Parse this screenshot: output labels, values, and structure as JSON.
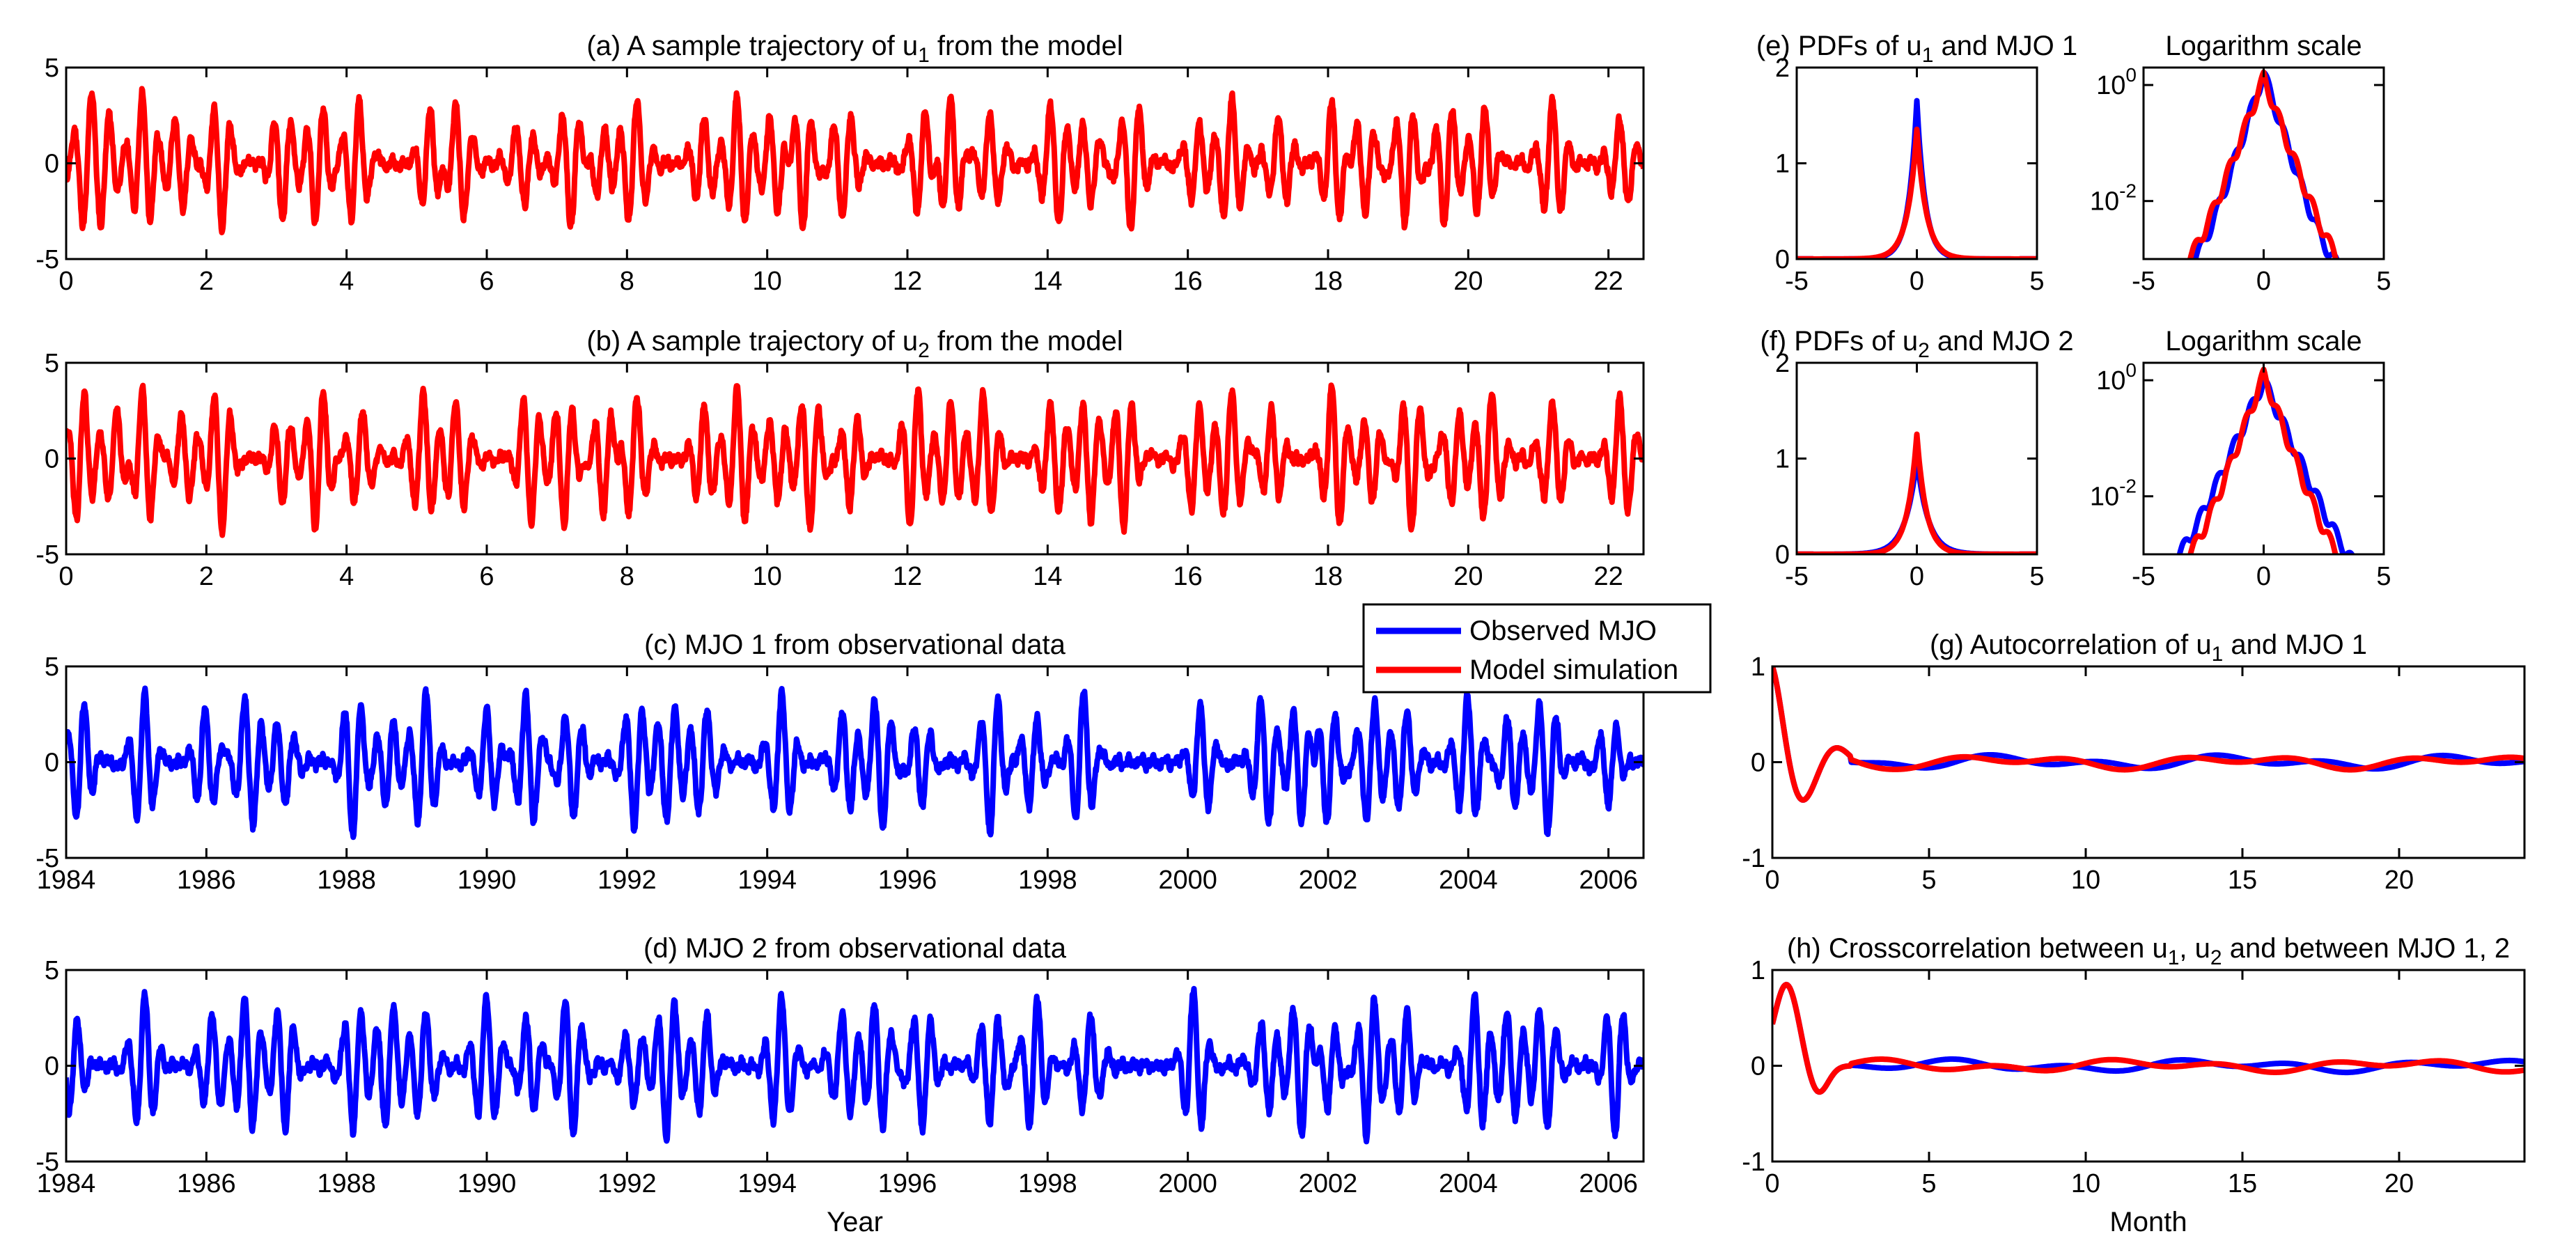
{
  "figure": {
    "legend": {
      "entries": [
        {
          "label": "Observed MJO",
          "color": "#0000ff"
        },
        {
          "label": "Model simulation",
          "color": "#ff0000"
        }
      ],
      "placement": "between panels (c) and (g)"
    }
  },
  "chart_data": [
    {
      "id": "a",
      "type": "line",
      "title_pre": "(a) A sample trajectory of u",
      "title_sub": "1",
      "title_post": " from the model",
      "x_range": [
        0,
        22.5
      ],
      "ylim": [
        -5,
        5
      ],
      "xticks": [
        0,
        2,
        4,
        6,
        8,
        10,
        12,
        14,
        16,
        18,
        20,
        22
      ],
      "yticks": [
        -5,
        0,
        5
      ],
      "xlabel": "",
      "series": [
        {
          "name": "Model simulation",
          "color": "#ff0000",
          "seed": 11,
          "bursts": [
            0.3,
            0.6,
            1.1,
            1.6,
            2.2,
            3.1,
            3.6,
            4.15,
            5.2,
            5.6,
            6.5,
            7.2,
            7.6,
            8.1,
            9.1,
            9.6,
            10.1,
            10.5,
            11.1,
            12.2,
            12.6,
            13.2,
            14.1,
            14.6,
            15.2,
            16.1,
            16.6,
            17.3,
            18.1,
            18.5,
            19.1,
            19.7,
            20.2,
            21.2,
            22.2
          ],
          "amp": 3.6
        }
      ]
    },
    {
      "id": "b",
      "type": "line",
      "title_pre": "(b) A sample trajectory of u",
      "title_sub": "2",
      "title_post": " from the model",
      "x_range": [
        0,
        22.5
      ],
      "ylim": [
        -5,
        5
      ],
      "xticks": [
        0,
        2,
        4,
        6,
        8,
        10,
        12,
        14,
        16,
        18,
        20,
        22
      ],
      "yticks": [
        -5,
        0,
        5
      ],
      "xlabel": "",
      "series": [
        {
          "name": "Model simulation",
          "color": "#ff0000",
          "seed": 23,
          "bursts": [
            0.2,
            0.7,
            1.1,
            1.7,
            2.2,
            3.1,
            3.6,
            4.2,
            5.1,
            5.6,
            6.6,
            7.1,
            7.7,
            8.1,
            9.1,
            9.6,
            10.1,
            10.6,
            11.2,
            12.1,
            12.6,
            13.1,
            14.1,
            14.6,
            15.1,
            16.1,
            16.6,
            17.2,
            18.1,
            18.6,
            19.2,
            19.8,
            20.3,
            21.2,
            22.2
          ],
          "amp": 3.8
        }
      ]
    },
    {
      "id": "c",
      "type": "line",
      "title_pre": "(c) MJO 1 from observational data",
      "title_sub": "",
      "title_post": "",
      "x_range": [
        1984,
        2006.5
      ],
      "ylim": [
        -5,
        5
      ],
      "xticks": [
        1984,
        1986,
        1988,
        1990,
        1992,
        1994,
        1996,
        1998,
        2000,
        2002,
        2004,
        2006
      ],
      "yticks": [
        -5,
        0,
        5
      ],
      "xlabel": "",
      "series": [
        {
          "name": "Observed MJO",
          "color": "#0000ff",
          "seed": 37,
          "bursts": [
            1984.2,
            1985.1,
            1986.0,
            1986.6,
            1987.1,
            1988.1,
            1988.6,
            1989.1,
            1990.0,
            1990.6,
            1991.2,
            1992.1,
            1992.6,
            1993.1,
            1994.2,
            1995.1,
            1995.6,
            1996.2,
            1997.2,
            1997.8,
            1998.5,
            2000.2,
            2001.1,
            2001.6,
            2002.0,
            2002.6,
            2003.1,
            2004.0,
            2004.6,
            2005.1,
            2006.0
          ],
          "amp": 3.8
        }
      ]
    },
    {
      "id": "d",
      "type": "line",
      "title_pre": "(d) MJO 2 from observational data",
      "title_sub": "",
      "title_post": "",
      "x_range": [
        1984,
        2006.5
      ],
      "ylim": [
        -5,
        5
      ],
      "xticks": [
        1984,
        1986,
        1988,
        1990,
        1992,
        1994,
        1996,
        1998,
        2000,
        2002,
        2004,
        2006
      ],
      "yticks": [
        -5,
        0,
        5
      ],
      "xlabel": "Year",
      "series": [
        {
          "name": "Observed MJO",
          "color": "#0000ff",
          "seed": 41,
          "bursts": [
            1984.1,
            1985.1,
            1986.1,
            1986.6,
            1987.1,
            1988.1,
            1988.6,
            1989.1,
            1990.0,
            1990.6,
            1991.2,
            1992.1,
            1992.6,
            1993.1,
            1994.2,
            1995.1,
            1995.6,
            1996.2,
            1997.2,
            1997.8,
            1998.6,
            2000.1,
            2001.1,
            2001.6,
            2002.0,
            2002.6,
            2003.1,
            2004.1,
            2004.6,
            2005.1,
            2006.1
          ],
          "amp": 3.9
        }
      ]
    },
    {
      "id": "e",
      "type": "line",
      "title_pre": "(e) PDFs of u",
      "title_sub": "1",
      "title_post": " and MJO 1",
      "x_range": [
        -5,
        5
      ],
      "ylim": [
        0,
        2
      ],
      "xticks": [
        -5,
        0,
        5
      ],
      "yticks": [
        0,
        1,
        2
      ],
      "xlabel": "",
      "log": false,
      "series": [
        {
          "name": "Observed MJO",
          "color": "#0000ff",
          "peak": 1.65,
          "w": 0.55
        },
        {
          "name": "Model simulation",
          "color": "#ff0000",
          "peak": 1.35,
          "w": 0.62
        }
      ]
    },
    {
      "id": "e_log",
      "type": "line",
      "title_pre": "Logarithm scale",
      "title_sub": "",
      "title_post": "",
      "x_range": [
        -5,
        5
      ],
      "ylim": [
        0.001,
        2
      ],
      "xticks": [
        -5,
        0,
        5
      ],
      "yticks": [
        0.01,
        1
      ],
      "ytick_labels": [
        "10^-2",
        "10^0"
      ],
      "xlabel": "",
      "log": true,
      "series": [
        {
          "name": "Observed MJO",
          "color": "#0000ff",
          "peak": 1.65,
          "w": 0.55
        },
        {
          "name": "Model simulation",
          "color": "#ff0000",
          "peak": 1.35,
          "w": 0.62
        }
      ]
    },
    {
      "id": "f",
      "type": "line",
      "title_pre": "(f) PDFs of u",
      "title_sub": "2",
      "title_post": " and MJO 2",
      "x_range": [
        -5,
        5
      ],
      "ylim": [
        0,
        2
      ],
      "xticks": [
        -5,
        0,
        5
      ],
      "yticks": [
        0,
        1,
        2
      ],
      "xlabel": "",
      "log": false,
      "series": [
        {
          "name": "Observed MJO",
          "color": "#0000ff",
          "peak": 1.0,
          "w": 0.75
        },
        {
          "name": "Model simulation",
          "color": "#ff0000",
          "peak": 1.25,
          "w": 0.62
        }
      ]
    },
    {
      "id": "f_log",
      "type": "line",
      "title_pre": "Logarithm scale",
      "title_sub": "",
      "title_post": "",
      "x_range": [
        -5,
        5
      ],
      "ylim": [
        0.001,
        2
      ],
      "xticks": [
        -5,
        0,
        5
      ],
      "yticks": [
        0.01,
        1
      ],
      "ytick_labels": [
        "10^-2",
        "10^0"
      ],
      "xlabel": "",
      "log": true,
      "series": [
        {
          "name": "Observed MJO",
          "color": "#0000ff",
          "peak": 1.0,
          "w": 0.75
        },
        {
          "name": "Model simulation",
          "color": "#ff0000",
          "peak": 1.25,
          "w": 0.62
        }
      ]
    },
    {
      "id": "g",
      "type": "line",
      "title_pre": "(g) Autocorrelation of u",
      "title_sub": "1",
      "title_post": " and MJO 1",
      "x_range": [
        0,
        24
      ],
      "ylim": [
        -1,
        1
      ],
      "xticks": [
        0,
        5,
        10,
        15,
        20
      ],
      "yticks": [
        -1,
        0,
        1
      ],
      "xlabel": "",
      "series": [
        {
          "name": "Observed MJO",
          "color": "#0000ff",
          "kind": "auto",
          "seed": 5
        },
        {
          "name": "Model simulation",
          "color": "#ff0000",
          "kind": "auto",
          "seed": 9
        }
      ]
    },
    {
      "id": "h",
      "type": "line",
      "title_pre": "(h) Crosscorrelation between u",
      "title_sub": "1",
      "title_post": ", u",
      "title_sub2": "2",
      "title_post2": " and between MJO 1, 2",
      "x_range": [
        0,
        24
      ],
      "ylim": [
        -1,
        1
      ],
      "xticks": [
        0,
        5,
        10,
        15,
        20
      ],
      "yticks": [
        -1,
        0,
        1
      ],
      "xlabel": "Month",
      "series": [
        {
          "name": "Observed MJO",
          "color": "#0000ff",
          "kind": "cross",
          "seed": 7
        },
        {
          "name": "Model simulation",
          "color": "#ff0000",
          "kind": "cross",
          "seed": 13
        }
      ]
    }
  ]
}
